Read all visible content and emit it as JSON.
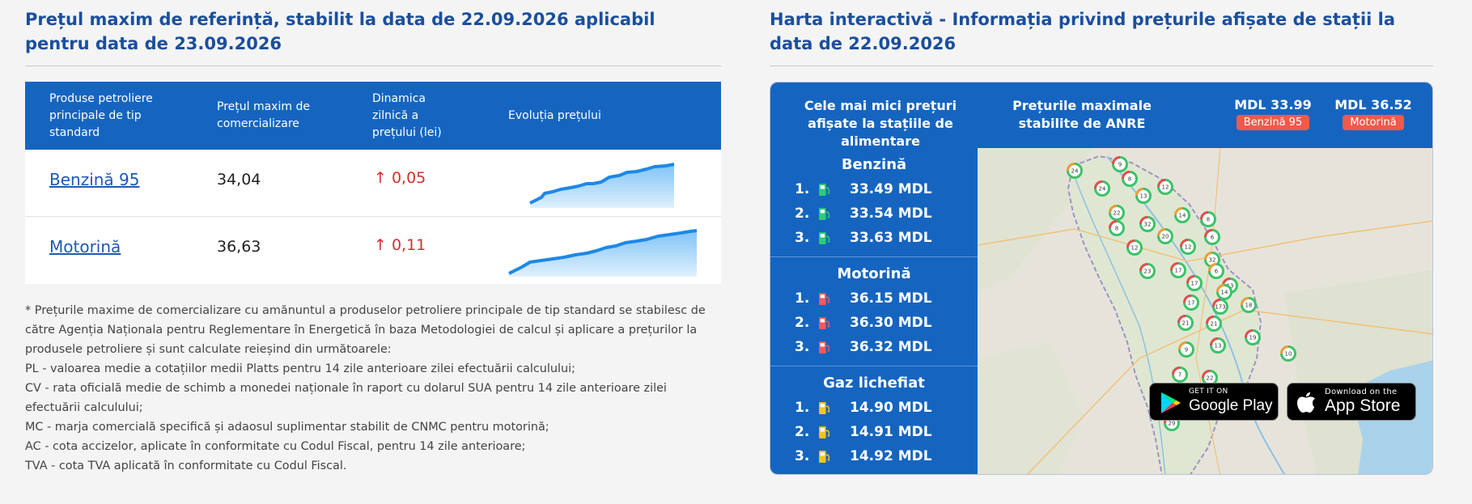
{
  "left": {
    "title": "Prețul maxim de referință, stabilit la data de 22.09.2026 aplicabil pentru data de 23.09.2026",
    "table": {
      "headers": [
        "Produse petroliere principale de tip standard",
        "Prețul maxim de comercializare",
        "Dinamica zilnică a prețului (lei)",
        "Evoluția prețului"
      ],
      "rows": [
        {
          "product": "Benzină 95",
          "price": "34,04",
          "delta": "↑ 0,05"
        },
        {
          "product": "Motorină",
          "price": "36,63",
          "delta": "↑ 0,11"
        }
      ]
    },
    "notes": [
      "* Prețurile maxime de comercializare cu amănuntul a produselor petroliere principale de tip standard se stabilesc de către Agenția Naționala pentru Reglementare în Energetică în baza Metodologiei de calcul și aplicare a prețurilor la produsele petroliere și sunt calculate reieșind din următoarele:",
      "PL - valoarea medie a cotațiilor medii Platts pentru 14 zile anterioare zilei efectuării calculului;",
      "CV - rata oficială medie de schimb a monedei naționale în raport cu dolarul SUA pentru 14 zile anterioare zilei efectuării calculului;",
      "MC - marja comercială specifică și adaosul suplimentar stabilit de CNMC pentru motorină;",
      "AC - cota accizelor, aplicate în conformitate cu Codul Fiscal, pentru 14 zile anterioare;",
      "TVA - cota TVA aplicată în conformitate cu Codul Fiscal."
    ]
  },
  "right": {
    "title": "Harta interactivă - Informația privind prețurile afișate de stații la data de 22.09.2026",
    "header": {
      "lowest_label": "Cele mai mici prețuri afișate la stațiile de alimentare",
      "max_label": "Prețurile maximale stabilite de ANRE",
      "max_prices": [
        {
          "value": "MDL 33.99",
          "badge": "Benzină 95"
        },
        {
          "value": "MDL 36.52",
          "badge": "Motorină"
        }
      ]
    },
    "fuels": [
      {
        "name": "Benzină",
        "pump_color": "#2ecc71",
        "items": [
          {
            "n": "1.",
            "price": "33.49 MDL"
          },
          {
            "n": "2.",
            "price": "33.54 MDL"
          },
          {
            "n": "3.",
            "price": "33.63 MDL"
          }
        ]
      },
      {
        "name": "Motorină",
        "pump_color": "#ef5a5a",
        "items": [
          {
            "n": "1.",
            "price": "36.15 MDL"
          },
          {
            "n": "2.",
            "price": "36.30 MDL"
          },
          {
            "n": "3.",
            "price": "36.32 MDL"
          }
        ]
      },
      {
        "name": "Gaz lichefiat",
        "pump_color": "#f5c518",
        "items": [
          {
            "n": "1.",
            "price": "14.90 MDL"
          },
          {
            "n": "2.",
            "price": "14.91 MDL"
          },
          {
            "n": "3.",
            "price": "14.92 MDL"
          }
        ]
      }
    ],
    "map_clusters": [
      "24",
      "9",
      "8",
      "13",
      "12",
      "24",
      "22",
      "8",
      "32",
      "14",
      "8",
      "6",
      "20",
      "12",
      "12",
      "32",
      "23",
      "17",
      "6",
      "13",
      "17",
      "14",
      "17",
      "173",
      "18",
      "21",
      "21",
      "9",
      "19",
      "13",
      "10",
      "7",
      "22",
      "12",
      "29"
    ],
    "stores": {
      "google_small": "GET IT ON",
      "google_big": "Google Play",
      "apple_small": "Download on the",
      "apple_big": "App Store"
    }
  }
}
